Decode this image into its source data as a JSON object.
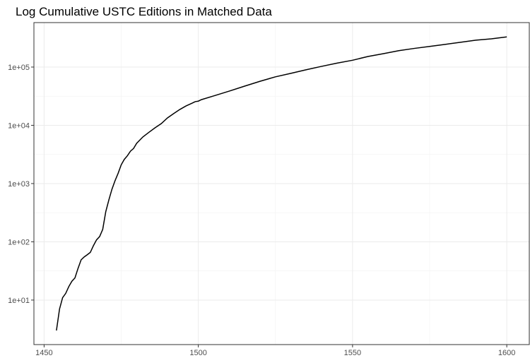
{
  "chart_data": {
    "type": "line",
    "title": "Log Cumulative USTC Editions in Matched Data",
    "x": [
      1454,
      1455,
      1456,
      1457,
      1458,
      1459,
      1460,
      1461,
      1462,
      1463,
      1464,
      1465,
      1466,
      1467,
      1468,
      1469,
      1470,
      1471,
      1472,
      1473,
      1474,
      1475,
      1476,
      1477,
      1478,
      1479,
      1480,
      1482,
      1484,
      1486,
      1488,
      1490,
      1492,
      1494,
      1496,
      1498,
      1499,
      1500,
      1501,
      1505,
      1510,
      1515,
      1520,
      1525,
      1530,
      1535,
      1540,
      1545,
      1550,
      1555,
      1560,
      1565,
      1570,
      1575,
      1580,
      1585,
      1590,
      1595,
      1600
    ],
    "series": [
      {
        "color": "#000000",
        "values": [
          3,
          7,
          11,
          13,
          17,
          21,
          24,
          35,
          49,
          55,
          60,
          66,
          86,
          108,
          123,
          163,
          330,
          525,
          800,
          1120,
          1500,
          2100,
          2600,
          3000,
          3600,
          4000,
          4900,
          6300,
          7600,
          9100,
          10700,
          13400,
          15900,
          18700,
          21500,
          24000,
          25500,
          26000,
          27600,
          32000,
          38600,
          47000,
          57000,
          68000,
          78000,
          90000,
          103000,
          117000,
          131000,
          152000,
          170000,
          191000,
          209000,
          226000,
          245000,
          266000,
          290000,
          305000,
          330000
        ]
      }
    ],
    "xlim": [
      1446.7,
      1607.3
    ],
    "xticks": [
      1450,
      1500,
      1550,
      1600
    ],
    "ylim": [
      1.72,
      580000
    ],
    "log_y": true,
    "yticks": [
      {
        "value": 10,
        "label": "1e+01"
      },
      {
        "value": 100,
        "label": "1e+02"
      },
      {
        "value": 1000,
        "label": "1e+03"
      },
      {
        "value": 10000,
        "label": "1e+04"
      },
      {
        "value": 100000,
        "label": "1e+05"
      }
    ],
    "grid": true
  }
}
